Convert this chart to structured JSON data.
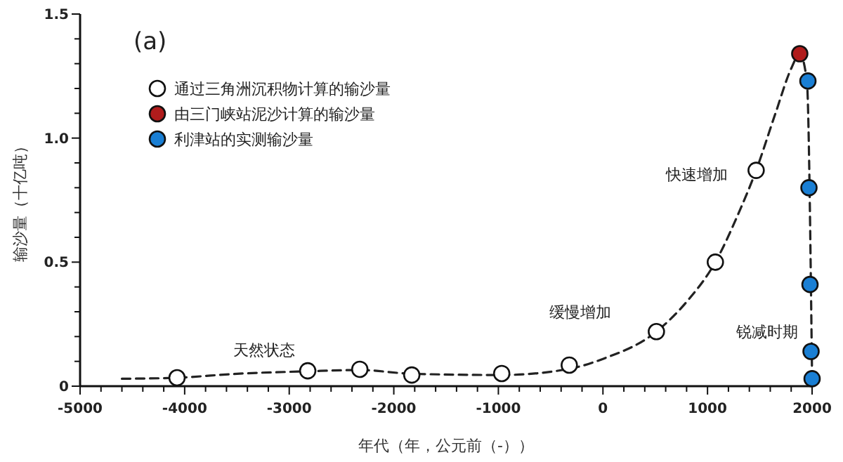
{
  "chart_data": {
    "type": "scatter",
    "xlabel": "年代（年，公元前（-））",
    "ylabel": "输沙量（十亿吨）",
    "xlim": [
      -5000,
      2000
    ],
    "ylim": [
      0,
      1.5
    ],
    "xticks": [
      -5000,
      {
        "value": -4800,
        "label": null
      },
      {
        "value": -4600,
        "label": null
      },
      {
        "value": -4400,
        "label": null
      },
      {
        "value": -4200,
        "label": null
      },
      -4000,
      {
        "value": -3800,
        "label": null
      },
      {
        "value": -3600,
        "label": null
      },
      {
        "value": -3400,
        "label": null
      },
      {
        "value": -3200,
        "label": null
      },
      -3000,
      {
        "value": -2800,
        "label": null
      },
      {
        "value": -2600,
        "label": null
      },
      {
        "value": -2400,
        "label": null
      },
      {
        "value": -2200,
        "label": null
      },
      -2000,
      {
        "value": -1800,
        "label": null
      },
      {
        "value": -1600,
        "label": null
      },
      {
        "value": -1400,
        "label": null
      },
      {
        "value": -1200,
        "label": null
      },
      -1000,
      {
        "value": -800,
        "label": null
      },
      {
        "value": -600,
        "label": null
      },
      {
        "value": -400,
        "label": null
      },
      {
        "value": -200,
        "label": null
      },
      0,
      {
        "value": 200,
        "label": null
      },
      {
        "value": 400,
        "label": null
      },
      {
        "value": 600,
        "label": null
      },
      {
        "value": 800,
        "label": null
      },
      1000,
      {
        "value": 1200,
        "label": null
      },
      {
        "value": 1400,
        "label": null
      },
      {
        "value": 1600,
        "label": null
      },
      {
        "value": 1800,
        "label": null
      },
      2000
    ],
    "yticks": [
      0,
      {
        "value": 0.1,
        "label": null
      },
      {
        "value": 0.2,
        "label": null
      },
      {
        "value": 0.3,
        "label": null
      },
      {
        "value": 0.4,
        "label": null
      },
      0.5,
      {
        "value": 0.6,
        "label": null
      },
      {
        "value": 0.7,
        "label": null
      },
      {
        "value": 0.8,
        "label": null
      },
      {
        "value": 0.9,
        "label": null
      },
      {
        "value": 1,
        "label": "1.0"
      },
      {
        "value": 1.1,
        "label": null
      },
      {
        "value": 1.2,
        "label": null
      },
      {
        "value": 1.3,
        "label": null
      },
      {
        "value": 1.4,
        "label": null
      },
      1.5
    ],
    "grid": false,
    "legend": "top left",
    "marker": "circle",
    "series": [
      {
        "type": "line",
        "color": "#222222",
        "line_style": "dashed",
        "marker": "none",
        "x": [
          -4600,
          -4073,
          -3500,
          -2823,
          -2325,
          -1828,
          -968,
          -322,
          0,
          511,
          800,
          1075,
          1300,
          1465,
          1650,
          1800,
          1882,
          1950,
          2000
        ],
        "values": [
          0.03,
          0.034,
          0.05,
          0.06,
          0.065,
          0.05,
          0.045,
          0.07,
          0.11,
          0.22,
          0.34,
          0.5,
          0.7,
          0.87,
          1.1,
          1.28,
          1.34,
          1.23,
          0.03
        ]
      },
      {
        "name": "通过三角洲沉积物计算的输沙量",
        "color": "#ffffff",
        "x": [
          -4073,
          -2823,
          -2325,
          -1828,
          -968,
          -322,
          511,
          1075,
          1465
        ],
        "values": [
          0.034,
          0.062,
          0.068,
          0.045,
          0.051,
          0.085,
          0.22,
          0.5,
          0.87
        ]
      },
      {
        "name": "由三门峡站泥沙计算的输沙量",
        "color": "#b01c1c",
        "x": [
          1882
        ],
        "values": [
          1.34
        ]
      },
      {
        "name": "利津站的实测输沙量",
        "color": "#1a7fd4",
        "x": [
          1960,
          1970,
          1980,
          1990,
          2000
        ],
        "values": [
          1.23,
          0.8,
          0.41,
          0.14,
          0.03
        ]
      }
    ],
    "annotations": [
      "(a)",
      "天然状态",
      "缓慢增加",
      "快速增加",
      "锐减时期"
    ]
  }
}
